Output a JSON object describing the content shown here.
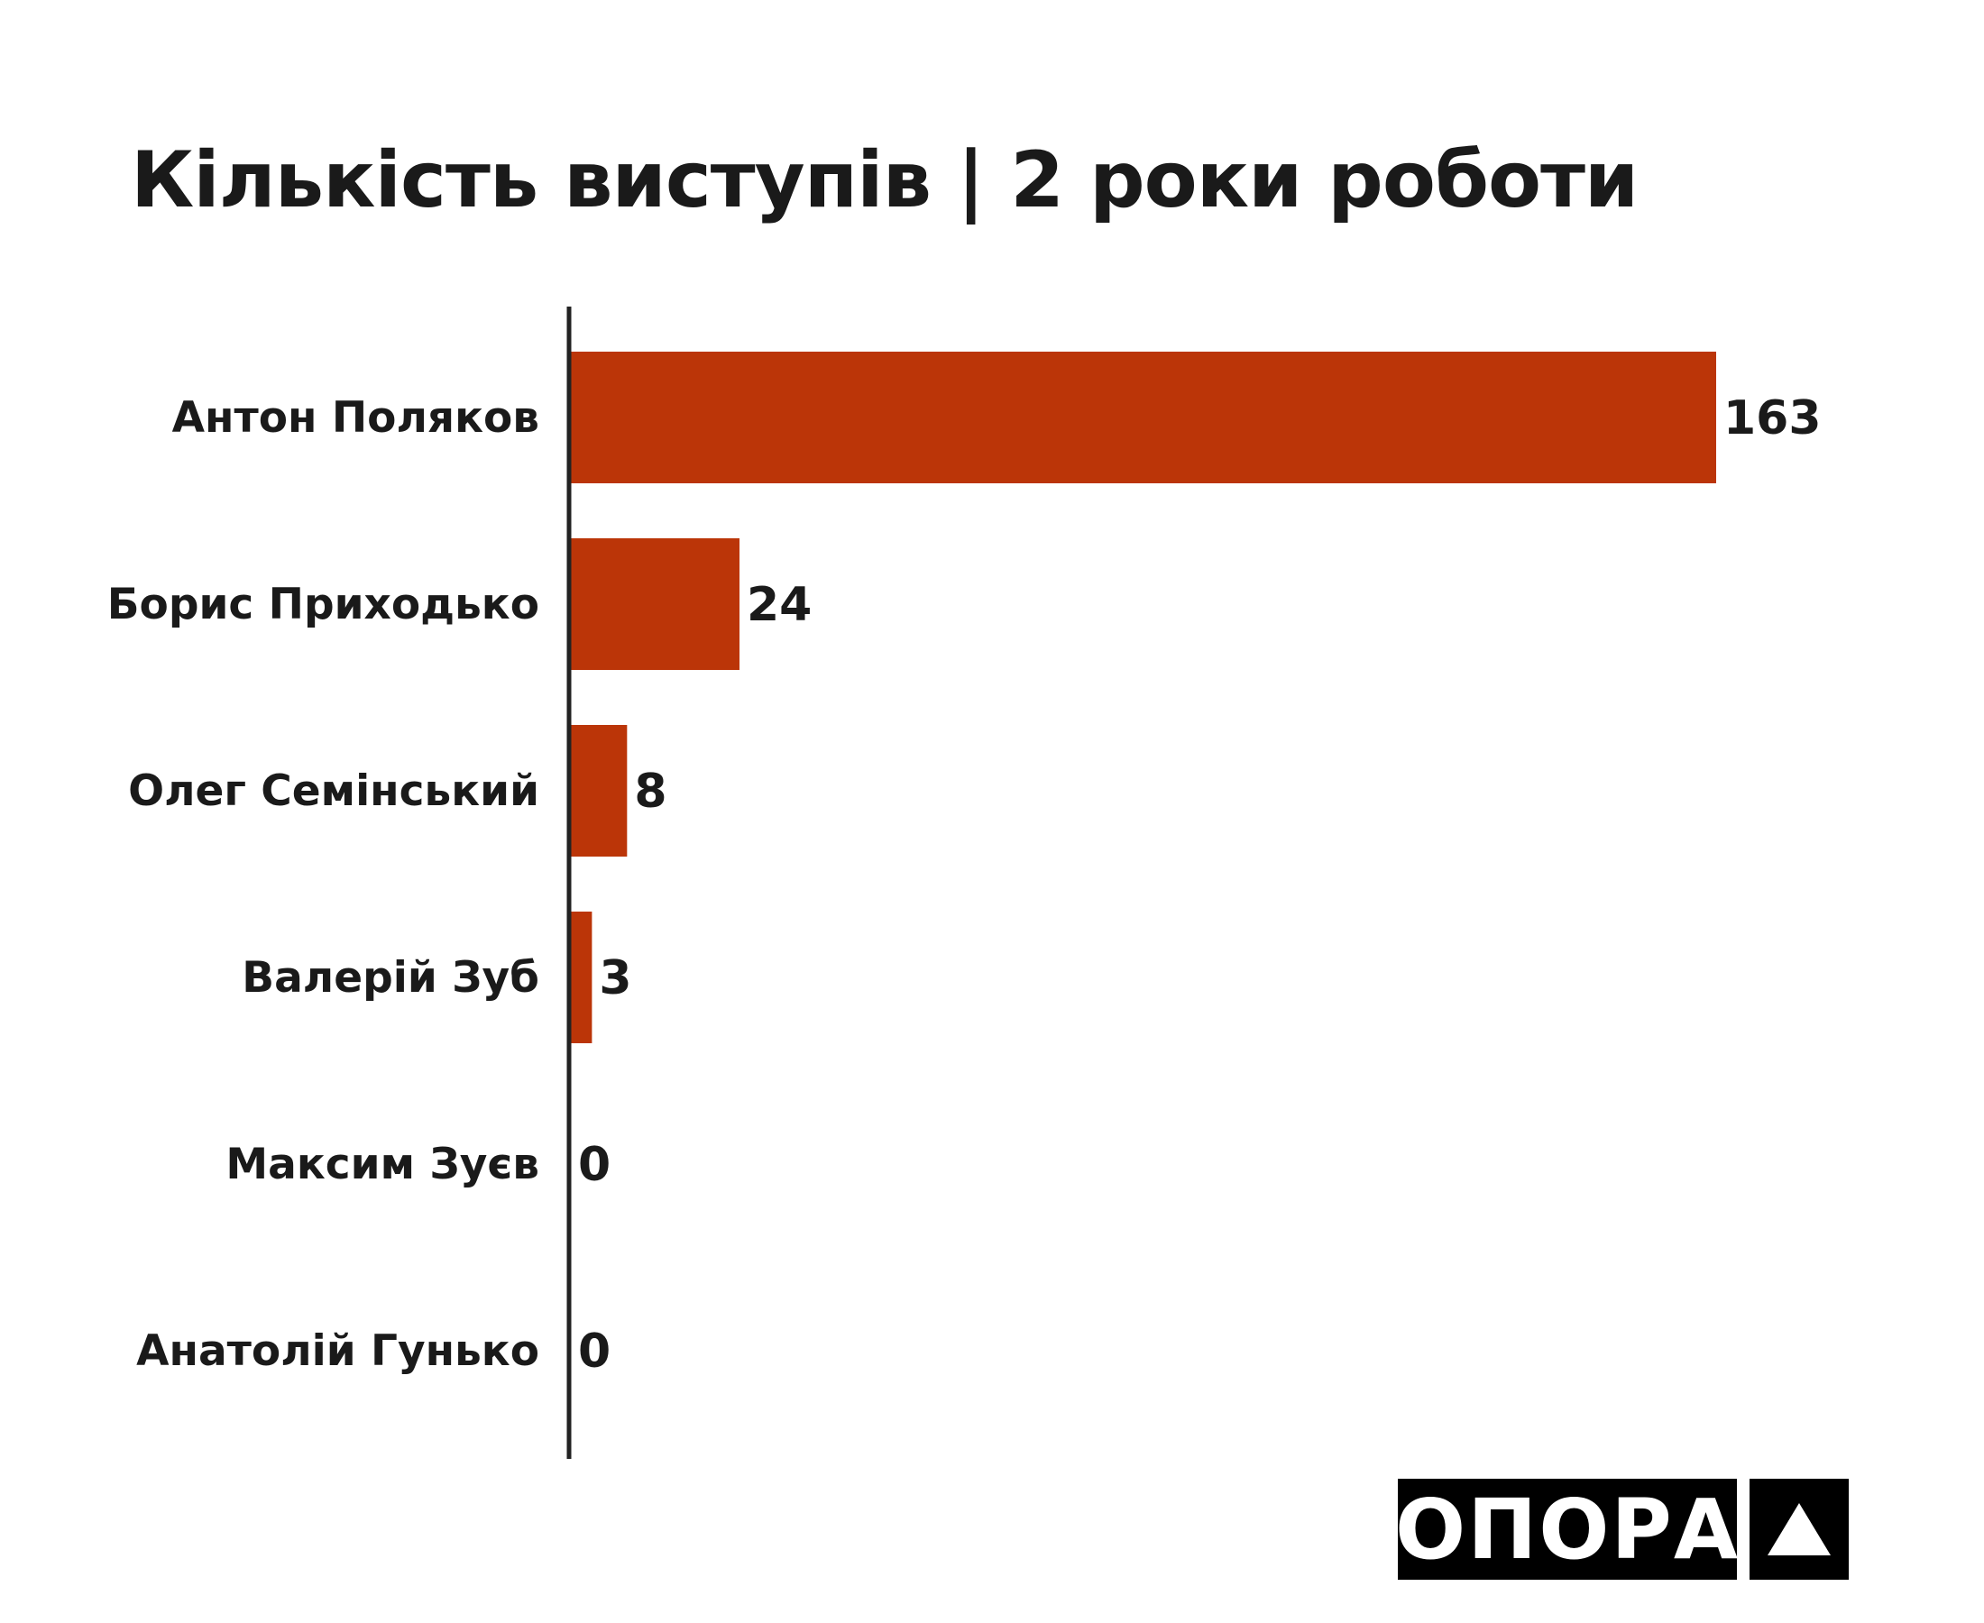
{
  "chart_data": {
    "type": "bar",
    "orientation": "horizontal",
    "title": "Кількість виступів | 2 роки роботи",
    "categories": [
      "Антон Поляков",
      "Борис Приходько",
      "Олег Семінський",
      "Валерій Зуб",
      "Максим Зуєв",
      "Анатолій Гунько"
    ],
    "values": [
      163,
      24,
      8,
      3,
      0,
      0
    ],
    "value_labels": [
      "163",
      "24",
      "8",
      "3",
      "0",
      "0"
    ],
    "xlabel": "",
    "ylabel": "",
    "xlim": [
      0,
      163
    ],
    "grid": false,
    "legend": "none",
    "bar_color": "#bb3508",
    "axis_color": "#222222"
  },
  "logo": {
    "word": "ОПОРА"
  }
}
